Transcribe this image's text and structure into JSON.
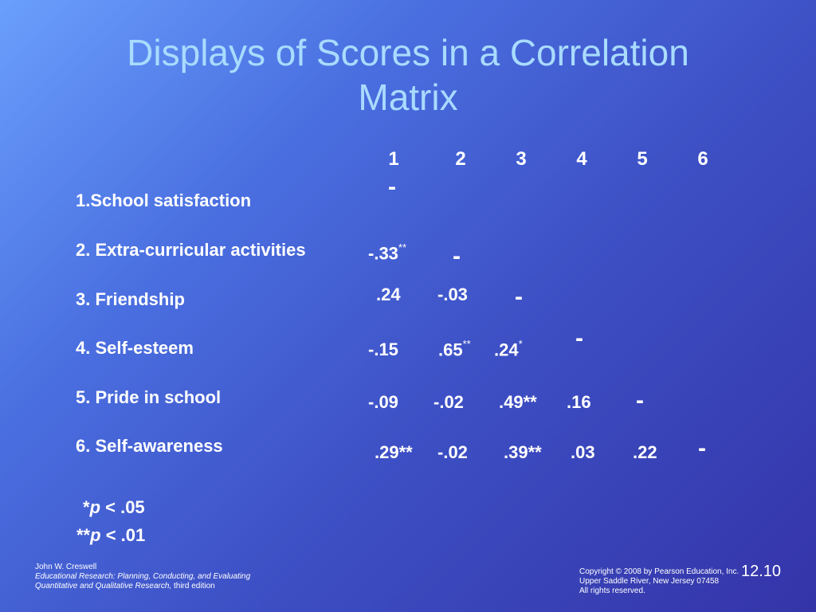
{
  "title_line1": "Displays of Scores in a Correlation",
  "title_line2": "Matrix",
  "columns": [
    "1",
    "2",
    "3",
    "4",
    "5",
    "6"
  ],
  "rows": [
    "1.School satisfaction",
    "2. Extra-curricular activities",
    "3. Friendship",
    "4. Self-esteem",
    "5. Pride in school",
    "6.  Self-awareness"
  ],
  "cells": {
    "r1": {
      "dash": "-"
    },
    "r2": {
      "c1": "-.33",
      "c1_sup": "**",
      "dash": "-"
    },
    "r3": {
      "c1": ".24",
      "c2": "-.03",
      "dash": "-"
    },
    "r4": {
      "c1": "-.15",
      "c2": ".65",
      "c2_sup": "**",
      "c3": ".24",
      "c3_sup": "*",
      "dash": "-"
    },
    "r5": {
      "c1": "-.09",
      "c2": "-.02",
      "c3": ".49**",
      "c4": ".16",
      "dash": "-"
    },
    "r6": {
      "c1": ".29**",
      "c2": "-.02",
      "c3": ".39**",
      "c4": ".03",
      "c5": ".22",
      "dash": "-"
    }
  },
  "notes": {
    "n1_stars": "*",
    "n1_p": "p",
    "n1_rest": " < .05",
    "n2_stars": "**",
    "n2_p": "p",
    "n2_rest": " < .01"
  },
  "footer": {
    "author": "John W. Creswell",
    "book_line1": "Educational Research: Planning, Conducting, and Evaluating",
    "book_line2_italic": "Quantitative and Qualitative Research,",
    "book_line2_rest": " third edition",
    "copyright_line1": "Copyright © 2008 by Pearson Education, Inc.",
    "copyright_line2": "Upper Saddle River, New Jersey 07458",
    "copyright_line3": "All rights reserved.",
    "slide_number": "12.10"
  }
}
